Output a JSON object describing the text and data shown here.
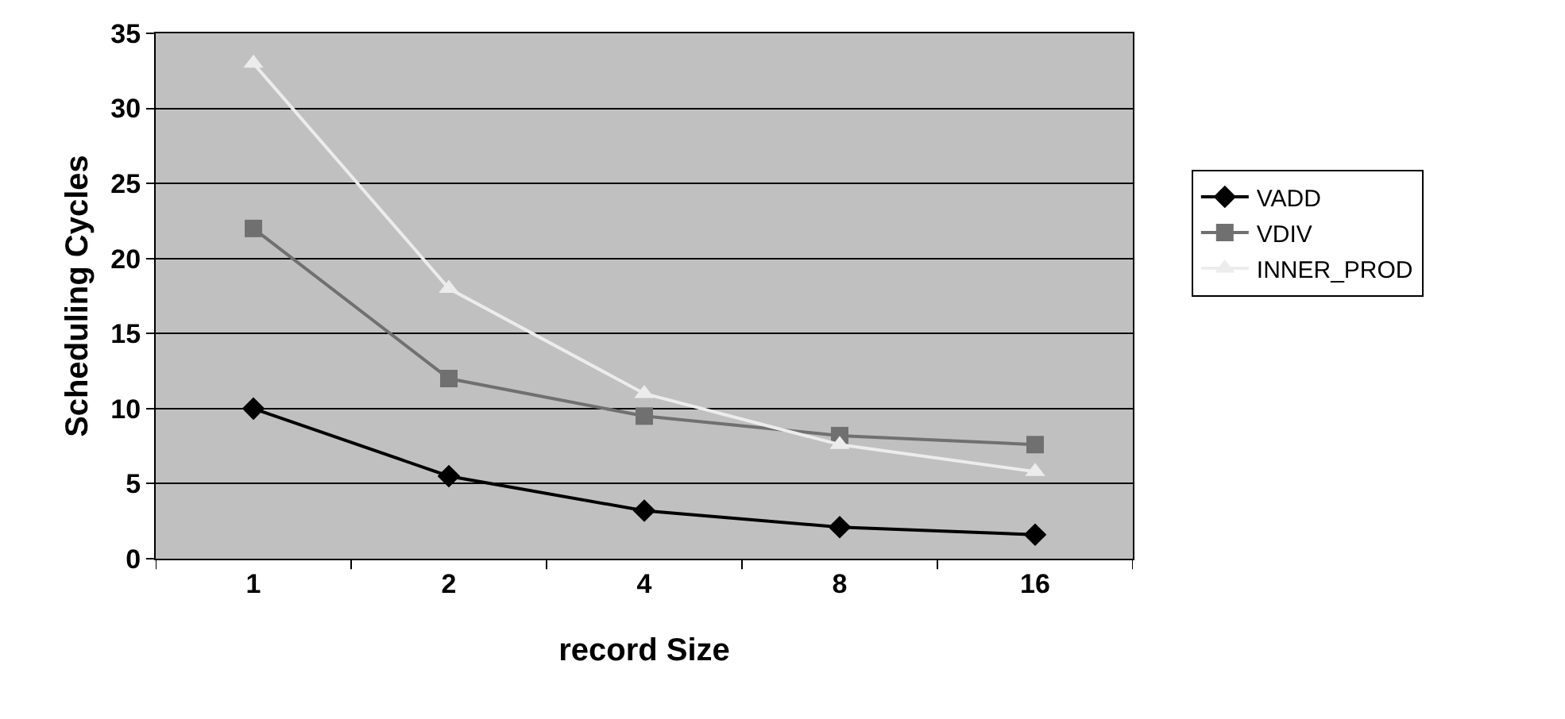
{
  "chart_data": {
    "type": "line",
    "xlabel": "record Size",
    "ylabel": "Scheduling Cycles",
    "categories": [
      "1",
      "2",
      "4",
      "8",
      "16"
    ],
    "ylim": [
      0,
      35
    ],
    "yticks": [
      0,
      5,
      10,
      15,
      20,
      25,
      30,
      35
    ],
    "grid": "y",
    "legend": "right",
    "series": [
      {
        "name": "VADD",
        "color": "#000000",
        "marker": "diamond",
        "values": [
          10,
          5.5,
          3.2,
          2.1,
          1.6
        ]
      },
      {
        "name": "VDIV",
        "color": "#707070",
        "marker": "square",
        "values": [
          22,
          12,
          9.5,
          8.2,
          7.6
        ]
      },
      {
        "name": "INNER_PROD",
        "color": "#ececec",
        "marker": "triangle",
        "values": [
          33,
          18,
          11,
          7.6,
          5.8
        ]
      }
    ]
  }
}
